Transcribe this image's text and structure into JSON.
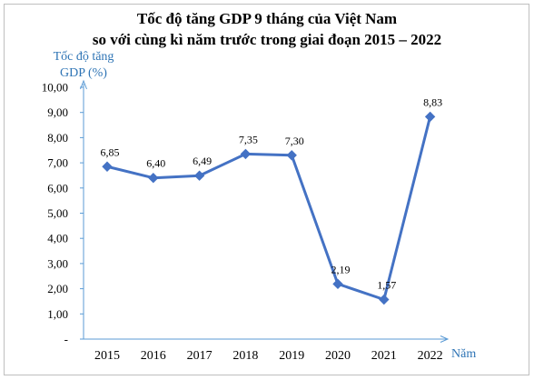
{
  "chart_data": {
    "type": "line",
    "title_line1": "Tốc độ tăng GDP 9 tháng của Việt Nam",
    "title_line2": "so với cùng kì năm trước trong giai đoạn 2015 – 2022",
    "ylabel_line1": "Tốc độ tăng",
    "ylabel_line2": "GDP (%)",
    "xlabel": "Năm",
    "categories": [
      "2015",
      "2016",
      "2017",
      "2018",
      "2019",
      "2020",
      "2021",
      "2022"
    ],
    "values": [
      6.85,
      6.4,
      6.49,
      7.35,
      7.3,
      2.19,
      1.57,
      8.83
    ],
    "data_labels": [
      "6,85",
      "6,40",
      "6,49",
      "7,35",
      "7,30",
      "2,19",
      "1,57",
      "8,83"
    ],
    "y_ticks": [
      "-",
      "1,00",
      "2,00",
      "3,00",
      "4,00",
      "5,00",
      "6,00",
      "7,00",
      "8,00",
      "9,00",
      "10,00"
    ],
    "ylim": [
      0,
      10
    ],
    "grid": false,
    "line_color": "#4472c4",
    "axis_color": "#5b9bd5"
  }
}
